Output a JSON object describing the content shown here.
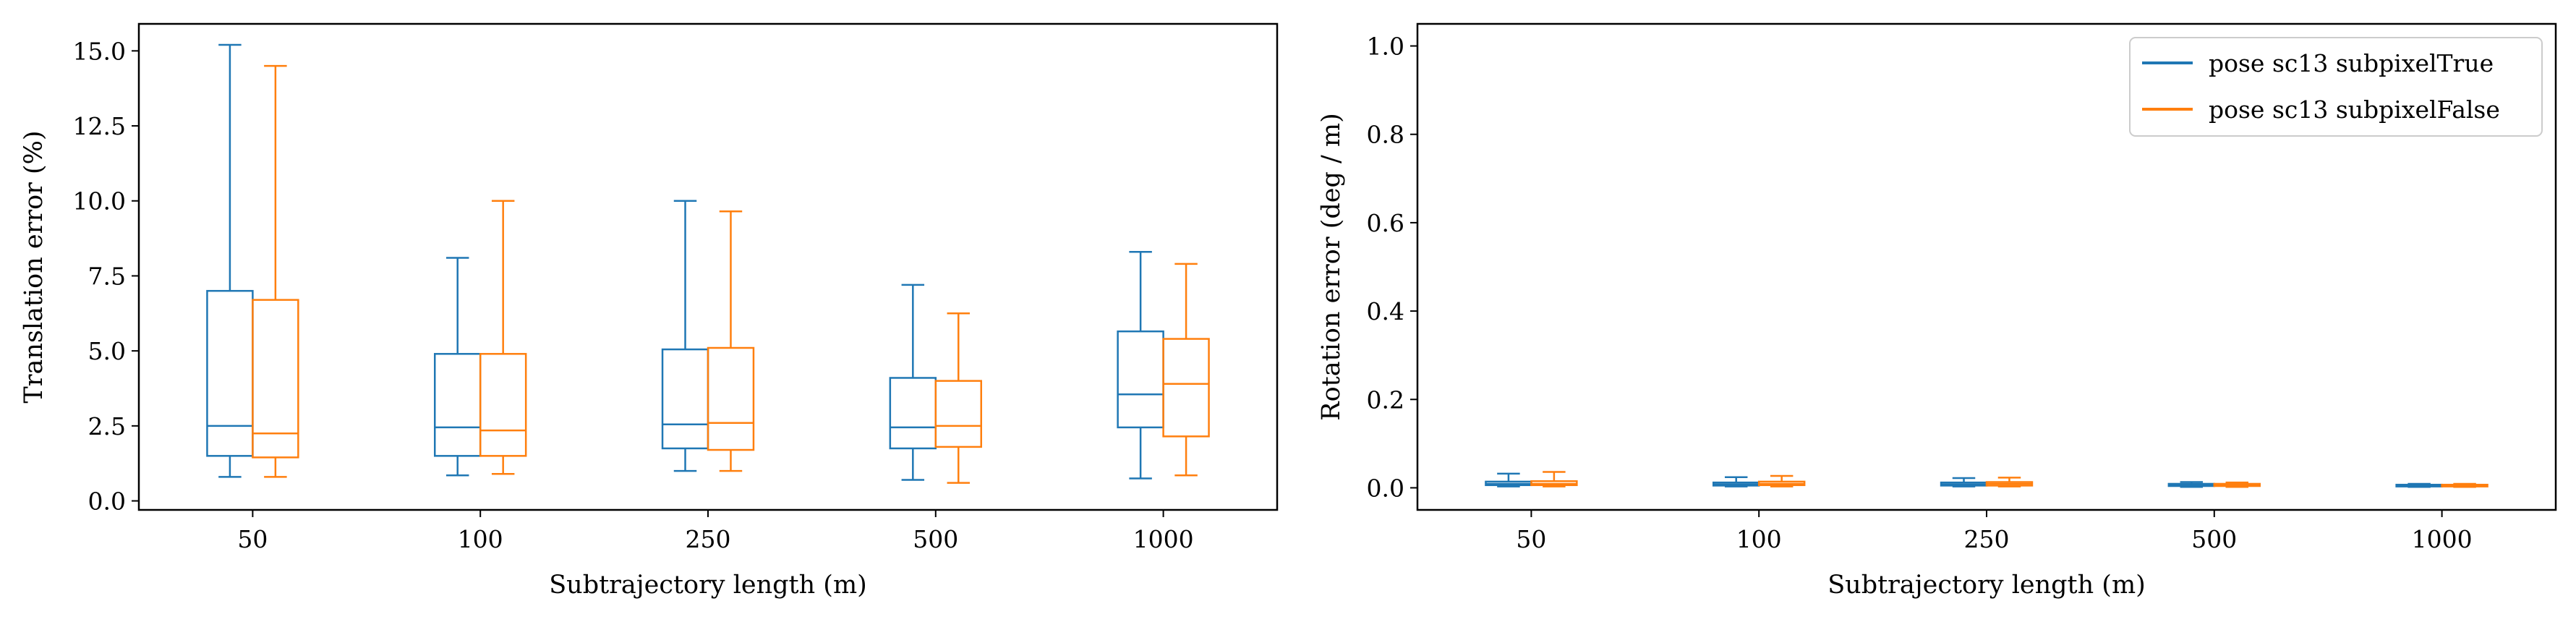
{
  "chart_data": [
    {
      "type": "box",
      "xlabel": "Subtrajectory length (m)",
      "ylabel": "Translation error (%)",
      "categories": [
        "50",
        "100",
        "250",
        "500",
        "1000"
      ],
      "ylim": [
        -0.3,
        15.9
      ],
      "yticks": [
        "0.0",
        "2.5",
        "5.0",
        "7.5",
        "10.0",
        "12.5",
        "15.0"
      ],
      "grid": false,
      "series": [
        {
          "color": "#1f77b4",
          "boxes": [
            {
              "whislo": 0.8,
              "q1": 1.5,
              "med": 2.5,
              "q3": 7.0,
              "whishi": 15.2
            },
            {
              "whislo": 0.85,
              "q1": 1.5,
              "med": 2.45,
              "q3": 4.9,
              "whishi": 8.1
            },
            {
              "whislo": 1.0,
              "q1": 1.75,
              "med": 2.55,
              "q3": 5.05,
              "whishi": 10.0
            },
            {
              "whislo": 0.7,
              "q1": 1.75,
              "med": 2.45,
              "q3": 4.1,
              "whishi": 7.2
            },
            {
              "whislo": 0.75,
              "q1": 2.45,
              "med": 3.55,
              "q3": 5.65,
              "whishi": 8.3
            }
          ]
        },
        {
          "color": "#ff7f0e",
          "boxes": [
            {
              "whislo": 0.8,
              "q1": 1.45,
              "med": 2.25,
              "q3": 6.7,
              "whishi": 14.5
            },
            {
              "whislo": 0.9,
              "q1": 1.5,
              "med": 2.35,
              "q3": 4.9,
              "whishi": 10.0
            },
            {
              "whislo": 1.0,
              "q1": 1.7,
              "med": 2.6,
              "q3": 5.1,
              "whishi": 9.65
            },
            {
              "whislo": 0.6,
              "q1": 1.8,
              "med": 2.5,
              "q3": 4.0,
              "whishi": 6.25
            },
            {
              "whislo": 0.85,
              "q1": 2.15,
              "med": 3.9,
              "q3": 5.4,
              "whishi": 7.9
            }
          ]
        }
      ]
    },
    {
      "type": "box",
      "xlabel": "Subtrajectory length (m)",
      "ylabel": "Rotation error (deg / m)",
      "categories": [
        "50",
        "100",
        "250",
        "500",
        "1000"
      ],
      "ylim": [
        -0.05,
        1.05
      ],
      "yticks": [
        "0.0",
        "0.2",
        "0.4",
        "0.6",
        "0.8",
        "1.0"
      ],
      "grid": false,
      "legend": {
        "position": "top-right",
        "entries": [
          "pose sc13 subpixelTrue",
          "pose sc13 subpixelFalse"
        ]
      },
      "series": [
        {
          "name": "pose sc13 subpixelTrue",
          "color": "#1f77b4",
          "boxes": [
            {
              "whislo": 0.003,
              "q1": 0.006,
              "med": 0.009,
              "q3": 0.014,
              "whishi": 0.032
            },
            {
              "whislo": 0.003,
              "q1": 0.005,
              "med": 0.008,
              "q3": 0.012,
              "whishi": 0.024
            },
            {
              "whislo": 0.003,
              "q1": 0.005,
              "med": 0.008,
              "q3": 0.012,
              "whishi": 0.022
            },
            {
              "whislo": 0.002,
              "q1": 0.004,
              "med": 0.006,
              "q3": 0.009,
              "whishi": 0.013
            },
            {
              "whislo": 0.002,
              "q1": 0.003,
              "med": 0.005,
              "q3": 0.007,
              "whishi": 0.009
            }
          ]
        },
        {
          "name": "pose sc13 subpixelFalse",
          "color": "#ff7f0e",
          "boxes": [
            {
              "whislo": 0.003,
              "q1": 0.006,
              "med": 0.009,
              "q3": 0.015,
              "whishi": 0.036
            },
            {
              "whislo": 0.003,
              "q1": 0.006,
              "med": 0.009,
              "q3": 0.014,
              "whishi": 0.027
            },
            {
              "whislo": 0.003,
              "q1": 0.005,
              "med": 0.009,
              "q3": 0.013,
              "whishi": 0.023
            },
            {
              "whislo": 0.002,
              "q1": 0.004,
              "med": 0.006,
              "q3": 0.009,
              "whishi": 0.012
            },
            {
              "whislo": 0.002,
              "q1": 0.003,
              "med": 0.005,
              "q3": 0.007,
              "whishi": 0.009
            }
          ]
        }
      ]
    }
  ]
}
